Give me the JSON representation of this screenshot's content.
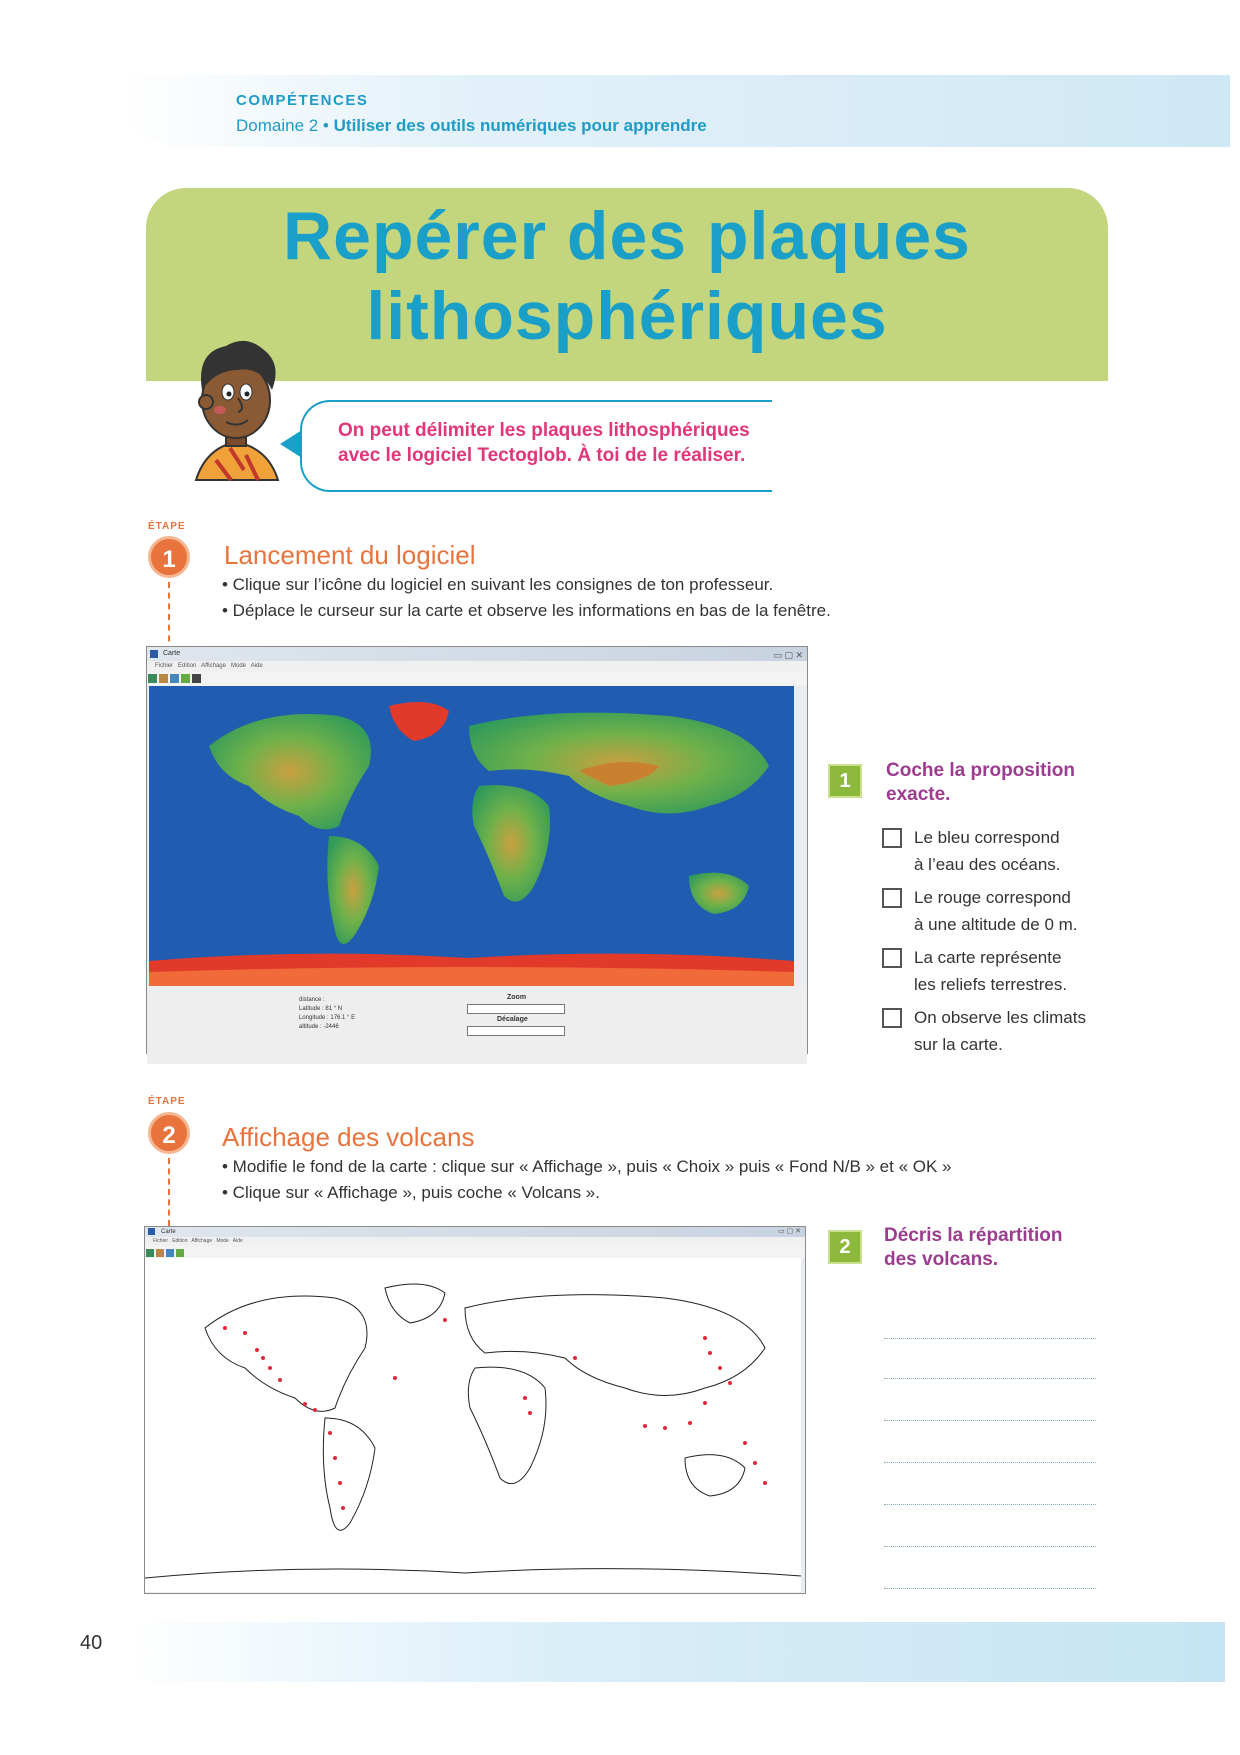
{
  "header": {
    "competences": "COMPÉTENCES",
    "domain_prefix": "Domaine 2 •",
    "domain_text": "Utiliser des outils numériques pour apprendre"
  },
  "title": {
    "line1": "Repérer des plaques",
    "line2": "lithosphériques"
  },
  "intro": {
    "line1": "On peut délimiter les plaques lithosphériques",
    "line2": "avec le logiciel Tectoglob. À toi de le réaliser."
  },
  "etape_label": "ÉTAPE",
  "step1": {
    "number": "1",
    "title": "Lancement du logiciel",
    "bullets": [
      "• Clique sur l’icône du logiciel en suivant les consignes de ton professeur.",
      "• Déplace le curseur sur la carte et observe les informations en bas de la fenêtre."
    ]
  },
  "window1": {
    "title": "Carte",
    "menu": [
      "Fichier",
      "Edition",
      "Affichage",
      "Mode",
      "Aide"
    ],
    "status": {
      "distance": "distance :",
      "latitude": "Latitude : 81 ° N",
      "longitude": "Longitude : 176.1 ° E",
      "altitude": "altitude : -2446",
      "zoom": "Zoom",
      "decalage": "Décalage"
    }
  },
  "question1": {
    "number": "1",
    "title_line1": "Coche la proposition",
    "title_line2": "exacte.",
    "options": [
      {
        "line1": "Le bleu correspond",
        "line2": "à l’eau des océans."
      },
      {
        "line1": "Le rouge correspond",
        "line2": "à une altitude de 0 m."
      },
      {
        "line1": "La carte représente",
        "line2": "les reliefs terrestres."
      },
      {
        "line1": "On observe les climats",
        "line2": "sur la carte."
      }
    ]
  },
  "step2": {
    "number": "2",
    "title": "Affichage des volcans",
    "bullets": [
      "• Modifie le fond de la carte : clique sur « Affichage », puis « Choix » puis « Fond N/B » et « OK »",
      "• Clique sur « Affichage », puis coche « Volcans »."
    ]
  },
  "window2": {
    "title": "Carte",
    "menu": [
      "Fichier",
      "Edition",
      "Affichage",
      "Mode",
      "Aide"
    ]
  },
  "question2": {
    "number": "2",
    "title_line1": "Décris la répartition",
    "title_line2": "des volcans."
  },
  "footer": {
    "page_number": "40"
  },
  "colors": {
    "title_blue": "#1aa0c8",
    "title_bg": "#c3d67d",
    "intro_pink": "#e0367a",
    "step_orange": "#e8733c",
    "question_purple": "#9b3c8e",
    "question_green": "#8cb83c"
  }
}
